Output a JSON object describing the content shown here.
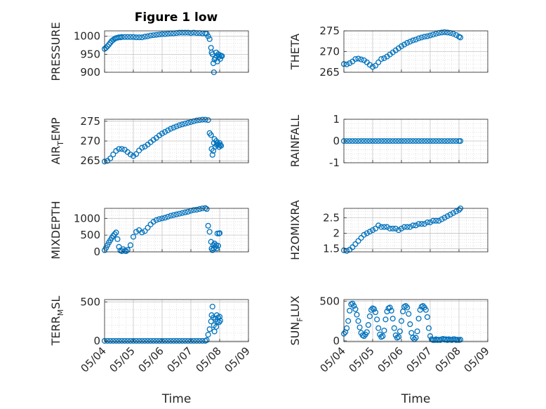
{
  "title": "Figure 1 low",
  "xlabel": "Time",
  "x_tick_labels": [
    "05/04",
    "05/05",
    "05/06",
    "05/07",
    "05/08",
    "05/09"
  ],
  "marker_color": "#0072BD",
  "chart_data": [
    {
      "type": "scatter",
      "ylabel_main": "PRESSURE",
      "ylabel_sub": "",
      "ylabel_rest": "",
      "ylim": [
        900,
        1015
      ],
      "yticks": [
        900,
        950,
        1000
      ],
      "x": [
        0.0,
        0.05,
        0.1,
        0.15,
        0.2,
        0.25,
        0.3,
        0.35,
        0.4,
        0.45,
        0.5,
        0.55,
        0.6,
        0.7,
        0.8,
        0.9,
        1.0,
        1.1,
        1.2,
        1.3,
        1.4,
        1.5,
        1.6,
        1.7,
        1.8,
        1.9,
        2.0,
        2.1,
        2.2,
        2.3,
        2.4,
        2.5,
        2.6,
        2.7,
        2.8,
        2.9,
        3.0,
        3.1,
        3.2,
        3.3,
        3.4,
        3.5,
        3.55,
        3.6,
        3.65,
        3.7,
        3.72,
        3.75,
        3.78,
        3.8,
        3.82,
        3.85,
        3.88,
        3.9,
        3.92,
        3.95,
        3.98,
        4.0,
        4.02,
        4.05,
        4.08
      ],
      "y": [
        965,
        968,
        972,
        977,
        982,
        987,
        990,
        993,
        995,
        996,
        997,
        997,
        998,
        998,
        998,
        998,
        998,
        997,
        997,
        997,
        999,
        1000,
        1002,
        1003,
        1004,
        1005,
        1006,
        1006,
        1007,
        1008,
        1008,
        1009,
        1010,
        1010,
        1010,
        1010,
        1009,
        1010,
        1009,
        1009,
        1008,
        1008,
        1007,
        1000,
        992,
        968,
        955,
        950,
        925,
        900,
        935,
        940,
        955,
        945,
        930,
        950,
        943,
        948,
        937,
        946,
        945
      ]
    },
    {
      "type": "scatter",
      "ylabel_main": "THETA",
      "ylabel_sub": "",
      "ylabel_rest": "",
      "ylim": [
        265,
        275
      ],
      "yticks": [
        265,
        270,
        275
      ],
      "x": [
        0.0,
        0.1,
        0.2,
        0.3,
        0.4,
        0.5,
        0.6,
        0.7,
        0.8,
        0.9,
        1.0,
        1.1,
        1.2,
        1.3,
        1.4,
        1.5,
        1.6,
        1.7,
        1.8,
        1.9,
        2.0,
        2.1,
        2.2,
        2.3,
        2.4,
        2.5,
        2.6,
        2.7,
        2.8,
        2.9,
        3.0,
        3.1,
        3.2,
        3.3,
        3.4,
        3.5,
        3.6,
        3.7,
        3.8,
        3.9,
        4.0,
        4.05
      ],
      "y": [
        267.0,
        266.9,
        267.2,
        267.6,
        268.2,
        268.3,
        268.1,
        267.9,
        267.4,
        266.8,
        266.3,
        266.6,
        267.4,
        268.2,
        268.4,
        268.8,
        269.3,
        269.8,
        270.3,
        270.8,
        271.3,
        271.7,
        272.1,
        272.4,
        272.7,
        272.9,
        273.2,
        273.4,
        273.6,
        273.7,
        273.9,
        274.1,
        274.3,
        274.5,
        274.6,
        274.7,
        274.6,
        274.5,
        274.3,
        274.0,
        273.6,
        273.4
      ]
    },
    {
      "type": "scatter",
      "ylabel_main": "AIR",
      "ylabel_sub": "T",
      "ylabel_rest": "EMP",
      "ylim": [
        264.5,
        275.5
      ],
      "yticks": [
        265,
        270,
        275
      ],
      "x": [
        0.0,
        0.1,
        0.2,
        0.3,
        0.4,
        0.5,
        0.6,
        0.7,
        0.8,
        0.9,
        1.0,
        1.1,
        1.2,
        1.3,
        1.4,
        1.5,
        1.6,
        1.7,
        1.8,
        1.9,
        2.0,
        2.1,
        2.2,
        2.3,
        2.4,
        2.5,
        2.6,
        2.7,
        2.8,
        2.9,
        3.0,
        3.1,
        3.2,
        3.3,
        3.4,
        3.5,
        3.6,
        3.65,
        3.7,
        3.72,
        3.75,
        3.78,
        3.8,
        3.82,
        3.85,
        3.88,
        3.9,
        3.92,
        3.95,
        3.98,
        4.0,
        4.02,
        4.05
      ],
      "y": [
        264.8,
        265.0,
        265.6,
        266.6,
        267.5,
        268.0,
        268.0,
        267.8,
        267.2,
        266.6,
        266.2,
        266.7,
        267.6,
        268.3,
        268.6,
        269.1,
        269.7,
        270.3,
        270.8,
        271.4,
        271.9,
        272.3,
        272.7,
        273.1,
        273.4,
        273.7,
        274.0,
        274.2,
        274.4,
        274.6,
        274.8,
        275.0,
        275.2,
        275.3,
        275.4,
        275.4,
        275.3,
        272.0,
        271.5,
        268.0,
        266.5,
        267.5,
        269.5,
        270.5,
        268.6,
        270.0,
        269.0,
        269.5,
        269.0,
        268.5,
        269.5,
        269.0,
        268.8
      ]
    },
    {
      "type": "scatter",
      "ylabel_main": "RAINFALL",
      "ylabel_sub": "",
      "ylabel_rest": "",
      "ylim": [
        -1,
        1
      ],
      "yticks": [
        -1,
        0,
        1
      ],
      "x": [
        0.0,
        0.1,
        0.2,
        0.3,
        0.4,
        0.5,
        0.6,
        0.7,
        0.8,
        0.9,
        1.0,
        1.1,
        1.2,
        1.3,
        1.4,
        1.5,
        1.6,
        1.7,
        1.8,
        1.9,
        2.0,
        2.1,
        2.2,
        2.3,
        2.4,
        2.5,
        2.6,
        2.7,
        2.8,
        2.9,
        3.0,
        3.1,
        3.2,
        3.3,
        3.4,
        3.5,
        3.6,
        3.7,
        3.8,
        3.9,
        4.0,
        4.05
      ],
      "y": [
        0,
        0,
        0,
        0,
        0,
        0,
        0,
        0,
        0,
        0,
        0,
        0,
        0,
        0,
        0,
        0,
        0,
        0,
        0,
        0,
        0,
        0,
        0,
        0,
        0,
        0,
        0,
        0,
        0,
        0,
        0,
        0,
        0,
        0,
        0,
        0,
        0,
        0,
        0,
        0,
        0,
        0
      ]
    },
    {
      "type": "scatter",
      "ylabel_main": "MIXDEPTH",
      "ylabel_sub": "",
      "ylabel_rest": "",
      "ylim": [
        0,
        1300
      ],
      "yticks": [
        0,
        500,
        1000
      ],
      "x": [
        0.0,
        0.05,
        0.1,
        0.15,
        0.2,
        0.25,
        0.3,
        0.35,
        0.4,
        0.45,
        0.5,
        0.55,
        0.6,
        0.65,
        0.7,
        0.75,
        0.8,
        0.9,
        1.0,
        1.1,
        1.2,
        1.3,
        1.4,
        1.5,
        1.6,
        1.7,
        1.8,
        1.9,
        2.0,
        2.1,
        2.2,
        2.3,
        2.4,
        2.5,
        2.6,
        2.7,
        2.8,
        2.9,
        3.0,
        3.1,
        3.2,
        3.3,
        3.4,
        3.5,
        3.55,
        3.6,
        3.65,
        3.7,
        3.72,
        3.75,
        3.78,
        3.8,
        3.82,
        3.85,
        3.88,
        3.9,
        3.92,
        3.95,
        3.98,
        4.0
      ],
      "y": [
        50,
        120,
        200,
        280,
        350,
        420,
        480,
        530,
        580,
        380,
        150,
        40,
        20,
        80,
        30,
        20,
        60,
        200,
        450,
        600,
        650,
        580,
        620,
        720,
        820,
        900,
        950,
        980,
        1000,
        1020,
        1050,
        1080,
        1100,
        1120,
        1140,
        1160,
        1180,
        1200,
        1230,
        1250,
        1260,
        1280,
        1300,
        1310,
        1280,
        780,
        600,
        300,
        100,
        50,
        200,
        100,
        250,
        150,
        200,
        100,
        550,
        180,
        550,
        560
      ]
    },
    {
      "type": "scatter",
      "ylabel_main": "H2OMIXRA",
      "ylabel_sub": "",
      "ylabel_rest": "",
      "ylim": [
        1.4,
        2.8
      ],
      "yticks": [
        1.5,
        2,
        2.5
      ],
      "x": [
        0.0,
        0.1,
        0.2,
        0.3,
        0.4,
        0.5,
        0.6,
        0.7,
        0.8,
        0.9,
        1.0,
        1.1,
        1.2,
        1.3,
        1.4,
        1.5,
        1.6,
        1.7,
        1.8,
        1.9,
        2.0,
        2.1,
        2.2,
        2.3,
        2.4,
        2.5,
        2.6,
        2.7,
        2.8,
        2.9,
        3.0,
        3.1,
        3.2,
        3.3,
        3.4,
        3.5,
        3.6,
        3.7,
        3.8,
        3.9,
        4.0,
        4.05
      ],
      "y": [
        1.45,
        1.43,
        1.47,
        1.55,
        1.65,
        1.75,
        1.85,
        1.95,
        2.0,
        2.05,
        2.1,
        2.15,
        2.25,
        2.2,
        2.2,
        2.2,
        2.15,
        2.15,
        2.15,
        2.1,
        2.15,
        2.2,
        2.2,
        2.2,
        2.25,
        2.25,
        2.3,
        2.3,
        2.3,
        2.35,
        2.35,
        2.4,
        2.4,
        2.4,
        2.45,
        2.5,
        2.55,
        2.6,
        2.65,
        2.7,
        2.75,
        2.8
      ]
    },
    {
      "type": "scatter",
      "ylabel_main": "TERR",
      "ylabel_sub": "M",
      "ylabel_rest": "SL",
      "ylim": [
        -10,
        530
      ],
      "yticks": [
        0,
        500
      ],
      "x": [
        0.0,
        0.1,
        0.2,
        0.3,
        0.4,
        0.5,
        0.6,
        0.7,
        0.8,
        0.9,
        1.0,
        1.1,
        1.2,
        1.3,
        1.4,
        1.5,
        1.6,
        1.7,
        1.8,
        1.9,
        2.0,
        2.1,
        2.2,
        2.3,
        2.4,
        2.5,
        2.6,
        2.7,
        2.8,
        2.9,
        3.0,
        3.1,
        3.2,
        3.3,
        3.4,
        3.5,
        3.55,
        3.6,
        3.65,
        3.7,
        3.72,
        3.75,
        3.78,
        3.8,
        3.82,
        3.85,
        3.88,
        3.9,
        3.92,
        3.95,
        3.98,
        4.0,
        4.02
      ],
      "y": [
        0,
        0,
        0,
        0,
        0,
        0,
        0,
        0,
        0,
        0,
        0,
        0,
        0,
        0,
        0,
        0,
        0,
        0,
        0,
        0,
        0,
        0,
        0,
        0,
        0,
        0,
        0,
        0,
        0,
        0,
        0,
        0,
        0,
        0,
        0,
        0,
        10,
        80,
        150,
        250,
        330,
        440,
        300,
        200,
        120,
        280,
        180,
        330,
        250,
        300,
        240,
        310,
        260
      ]
    },
    {
      "type": "scatter",
      "ylabel_main": "SUN",
      "ylabel_sub": "F",
      "ylabel_rest": "LUX",
      "ylim": [
        -10,
        520
      ],
      "yticks": [
        0,
        500
      ],
      "x": [
        0.0,
        0.05,
        0.1,
        0.15,
        0.2,
        0.25,
        0.3,
        0.35,
        0.4,
        0.45,
        0.5,
        0.55,
        0.6,
        0.65,
        0.7,
        0.75,
        0.8,
        0.85,
        0.9,
        0.95,
        1.0,
        1.05,
        1.1,
        1.15,
        1.2,
        1.25,
        1.3,
        1.35,
        1.4,
        1.45,
        1.5,
        1.55,
        1.6,
        1.65,
        1.7,
        1.75,
        1.8,
        1.85,
        1.9,
        1.95,
        2.0,
        2.05,
        2.1,
        2.15,
        2.2,
        2.25,
        2.3,
        2.35,
        2.4,
        2.45,
        2.5,
        2.55,
        2.6,
        2.65,
        2.7,
        2.75,
        2.8,
        2.85,
        2.9,
        2.95,
        3.0,
        3.05,
        3.1,
        3.15,
        3.2,
        3.25,
        3.3,
        3.35,
        3.4,
        3.45,
        3.5,
        3.55,
        3.6,
        3.65,
        3.7,
        3.75,
        3.8,
        3.85,
        3.9,
        3.95,
        4.0,
        4.05
      ],
      "y": [
        90,
        110,
        160,
        250,
        380,
        460,
        470,
        440,
        400,
        330,
        250,
        170,
        100,
        70,
        60,
        80,
        110,
        200,
        310,
        390,
        410,
        400,
        360,
        270,
        160,
        80,
        50,
        60,
        130,
        270,
        370,
        410,
        420,
        380,
        280,
        160,
        70,
        40,
        50,
        120,
        250,
        370,
        430,
        440,
        420,
        340,
        210,
        100,
        40,
        20,
        40,
        120,
        280,
        390,
        430,
        440,
        420,
        390,
        300,
        160,
        60,
        20,
        10,
        10,
        20,
        10,
        15,
        10,
        20,
        25,
        15,
        20,
        10,
        20,
        15,
        10,
        20,
        20,
        10,
        15,
        10,
        15
      ]
    }
  ]
}
